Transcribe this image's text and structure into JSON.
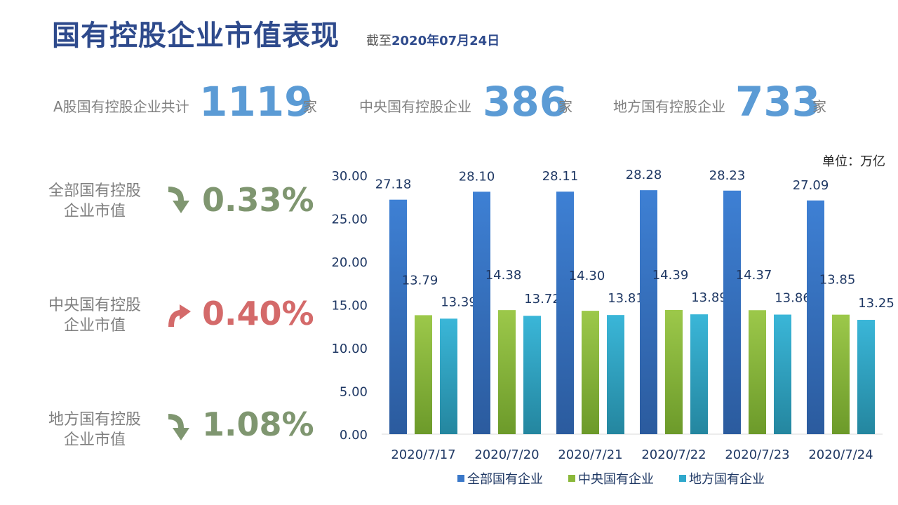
{
  "header": {
    "title": "国有控股企业市值表现",
    "asof_prefix": "截至",
    "asof_date": "2020年07月24日"
  },
  "stats": [
    {
      "label": "A股国有控股企业共计",
      "value": "1119",
      "unit": "家"
    },
    {
      "label": "中央国有控股企业",
      "value": "386",
      "unit": "家"
    },
    {
      "label": "地方国有控股企业",
      "value": "733",
      "unit": "家"
    }
  ],
  "metrics": [
    {
      "label_line1": "全部国有控股",
      "label_line2": "企业市值",
      "direction": "down",
      "change": "0.33%",
      "color": "#7f9670"
    },
    {
      "label_line1": "中央国有控股",
      "label_line2": "企业市值",
      "direction": "up",
      "change": "0.40%",
      "color": "#d46a6a"
    },
    {
      "label_line1": "地方国有控股",
      "label_line2": "企业市值",
      "direction": "down",
      "change": "1.08%",
      "color": "#7f9670"
    }
  ],
  "unit_label": "单位：万亿",
  "colors": {
    "blue": "#3a78c9",
    "green": "#8ab83a",
    "cyan": "#2fa8cc",
    "title": "#2e4a8c",
    "axis": "#1f3864"
  },
  "chart_data": {
    "type": "bar",
    "categories": [
      "2020/7/17",
      "2020/7/20",
      "2020/7/21",
      "2020/7/22",
      "2020/7/23",
      "2020/7/24"
    ],
    "series": [
      {
        "name": "全部国有企业",
        "values": [
          27.18,
          28.1,
          28.11,
          28.28,
          28.23,
          27.09
        ],
        "labels": [
          "27.18",
          "28.10",
          "28.11",
          "28.28",
          "28.23",
          "27.09"
        ]
      },
      {
        "name": "中央国有企业",
        "values": [
          13.79,
          14.38,
          14.3,
          14.39,
          14.37,
          13.85
        ],
        "labels": [
          "13.79",
          "14.38",
          "14.30",
          "14.39",
          "14.37",
          "13.85"
        ]
      },
      {
        "name": "地方国有企业",
        "values": [
          13.39,
          13.72,
          13.81,
          13.89,
          13.86,
          13.25
        ],
        "labels": [
          "13.39",
          "13.72",
          "13.81",
          "13.89",
          "13.86",
          "13.25"
        ]
      }
    ],
    "ylim": [
      0,
      30
    ],
    "yticks": [
      "0.00",
      "5.00",
      "10.00",
      "15.00",
      "20.00",
      "25.00",
      "30.00"
    ],
    "grid": false,
    "legend": "bottom"
  }
}
